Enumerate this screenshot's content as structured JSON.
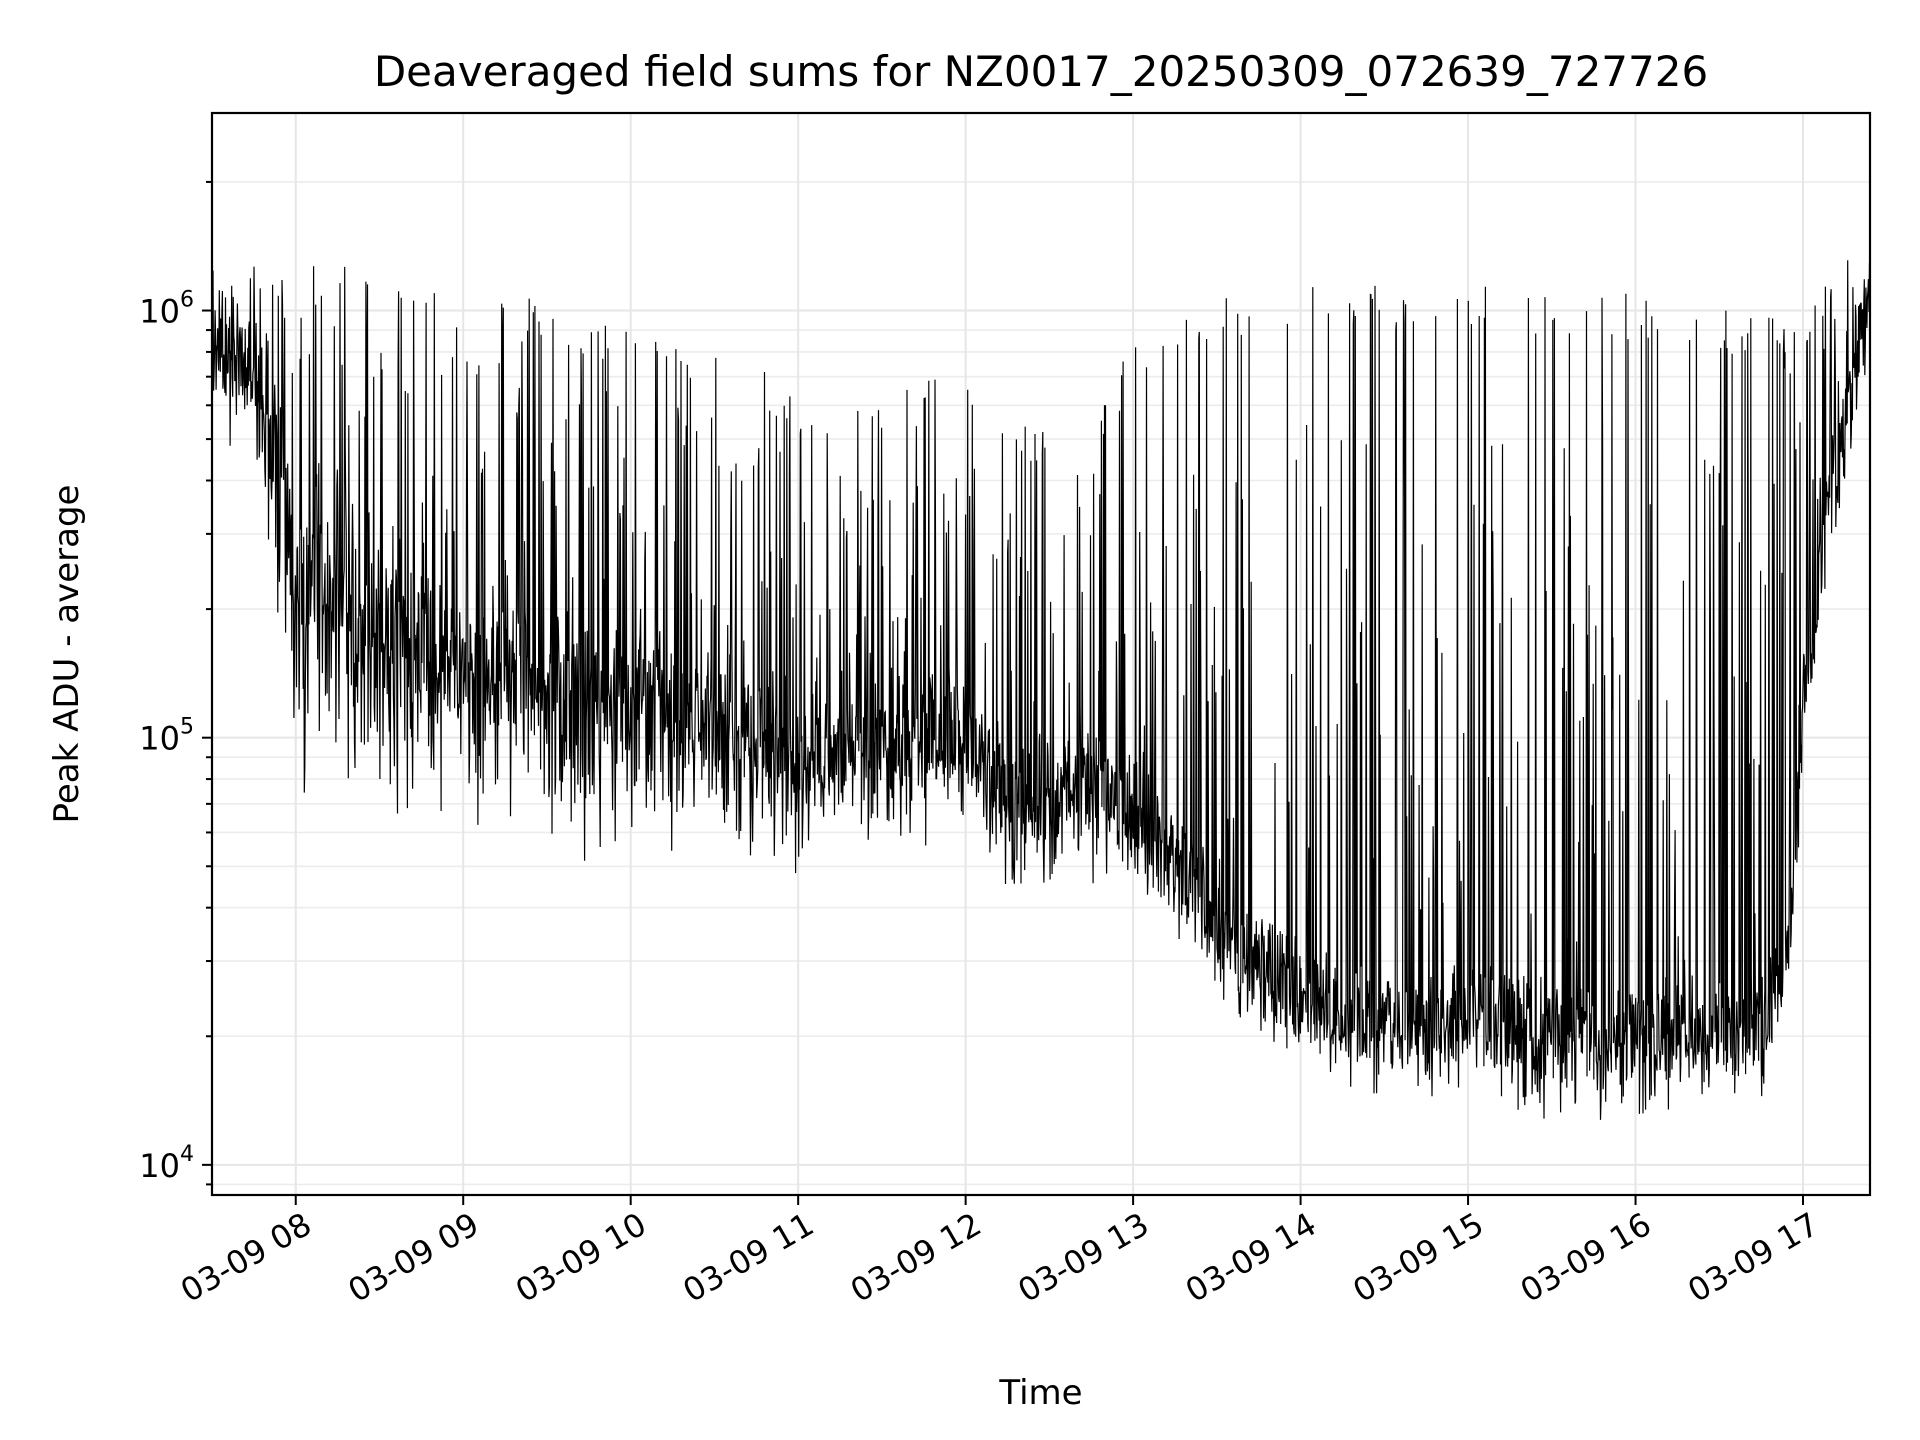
{
  "chart_data": {
    "type": "line",
    "title": "Deaveraged field sums for NZ0017_20250309_072639_727726",
    "xlabel": "Time",
    "ylabel": "Peak ADU - average",
    "y_scale": "log",
    "ylim": [
      8500,
      2900000
    ],
    "x_range": [
      "2025-03-09 07:30",
      "2025-03-09 17:24"
    ],
    "grid": true,
    "line_color": "#000000",
    "x_ticks": [
      {
        "value": "2025-03-09 08:00",
        "label": "03-09 08"
      },
      {
        "value": "2025-03-09 09:00",
        "label": "03-09 09"
      },
      {
        "value": "2025-03-09 10:00",
        "label": "03-09 10"
      },
      {
        "value": "2025-03-09 11:00",
        "label": "03-09 11"
      },
      {
        "value": "2025-03-09 12:00",
        "label": "03-09 12"
      },
      {
        "value": "2025-03-09 13:00",
        "label": "03-09 13"
      },
      {
        "value": "2025-03-09 14:00",
        "label": "03-09 14"
      },
      {
        "value": "2025-03-09 15:00",
        "label": "03-09 15"
      },
      {
        "value": "2025-03-09 16:00",
        "label": "03-09 16"
      },
      {
        "value": "2025-03-09 17:00",
        "label": "03-09 17"
      }
    ],
    "y_ticks": [
      {
        "value": 10000,
        "base": "10",
        "exp": "4"
      },
      {
        "value": 100000,
        "base": "10",
        "exp": "5"
      },
      {
        "value": 1000000,
        "base": "10",
        "exp": "6"
      }
    ],
    "series": [
      {
        "x": [
          "2025-03-09 07:30",
          "2025-03-09 07:40",
          "2025-03-09 07:50",
          "2025-03-09 08:00",
          "2025-03-09 08:15",
          "2025-03-09 08:30",
          "2025-03-09 08:45",
          "2025-03-09 09:00",
          "2025-03-09 09:15",
          "2025-03-09 09:30",
          "2025-03-09 09:45",
          "2025-03-09 10:00",
          "2025-03-09 10:15",
          "2025-03-09 10:30",
          "2025-03-09 10:45",
          "2025-03-09 11:00",
          "2025-03-09 11:15",
          "2025-03-09 11:30",
          "2025-03-09 11:45",
          "2025-03-09 12:00",
          "2025-03-09 12:15",
          "2025-03-09 12:30",
          "2025-03-09 12:45",
          "2025-03-09 13:00",
          "2025-03-09 13:15",
          "2025-03-09 13:30",
          "2025-03-09 13:45",
          "2025-03-09 14:00",
          "2025-03-09 14:15",
          "2025-03-09 14:30",
          "2025-03-09 14:45",
          "2025-03-09 15:00",
          "2025-03-09 15:15",
          "2025-03-09 15:30",
          "2025-03-09 15:45",
          "2025-03-09 16:00",
          "2025-03-09 16:15",
          "2025-03-09 16:30",
          "2025-03-09 16:45",
          "2025-03-09 16:55",
          "2025-03-09 17:00",
          "2025-03-09 17:10",
          "2025-03-09 17:24"
        ],
        "base": [
          900000,
          850000,
          700000,
          300000,
          250000,
          220000,
          200000,
          180000,
          170000,
          160000,
          150000,
          140000,
          130000,
          120000,
          110000,
          100000,
          100000,
          110000,
          110000,
          120000,
          80000,
          80000,
          85000,
          75000,
          55000,
          40000,
          30000,
          27000,
          24000,
          23000,
          22000,
          24000,
          23000,
          22000,
          21000,
          21000,
          22000,
          22000,
          22000,
          35000,
          120000,
          400000,
          1100000
        ],
        "low": [
          600000,
          500000,
          300000,
          70000,
          65000,
          62000,
          58000,
          56000,
          55000,
          56000,
          57000,
          58000,
          58000,
          56000,
          54000,
          50000,
          50000,
          52000,
          55000,
          58000,
          45000,
          45000,
          50000,
          48000,
          38000,
          28000,
          22000,
          19000,
          17000,
          16000,
          15000,
          17000,
          15000,
          14000,
          14000,
          14500,
          15000,
          15000,
          15000,
          25000,
          80000,
          300000,
          900000
        ],
        "high": [
          1400000,
          1300000,
          1300000,
          1300000,
          1300000,
          1200000,
          1200000,
          1150000,
          1100000,
          1050000,
          1000000,
          950000,
          900000,
          850000,
          750000,
          650000,
          600000,
          600000,
          700000,
          800000,
          600000,
          550000,
          500000,
          900000,
          1000000,
          1100000,
          1100000,
          1150000,
          1150000,
          1150000,
          1150000,
          1150000,
          1150000,
          1100000,
          1100000,
          1100000,
          1050000,
          1000000,
          1000000,
          900000,
          1000000,
          1200000,
          1500000
        ]
      }
    ]
  }
}
